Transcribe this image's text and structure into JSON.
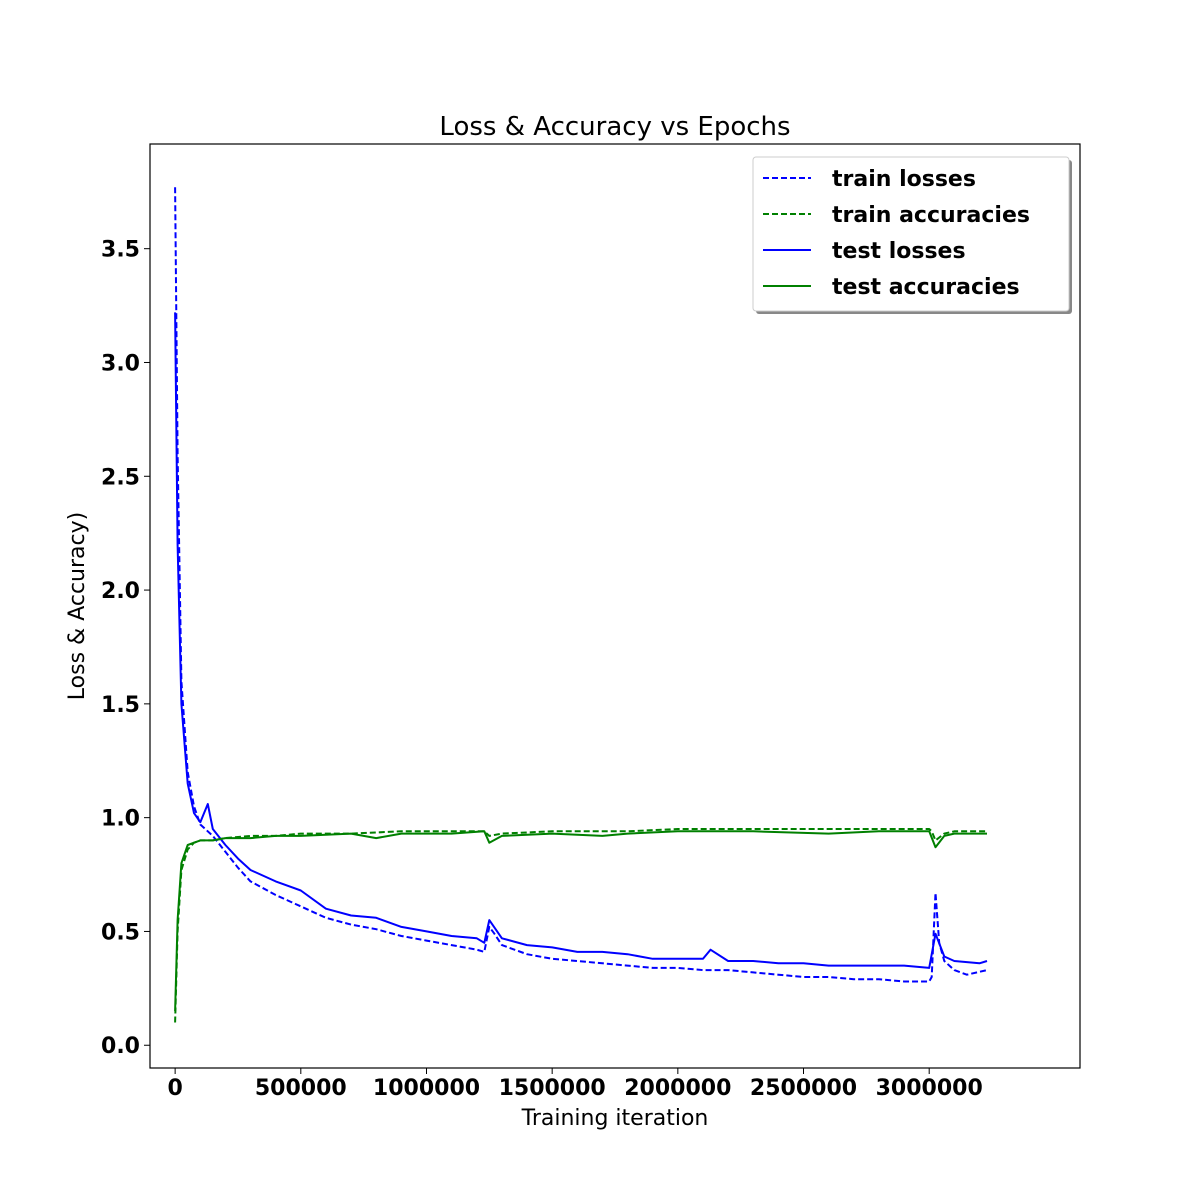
{
  "chart_data": {
    "type": "line",
    "title": "Loss & Accuracy vs Epochs",
    "xlabel": "Training iteration",
    "ylabel": "Loss & Accuracy)",
    "xlim": [
      -100000,
      3600000
    ],
    "ylim": [
      -0.1,
      3.96
    ],
    "xticks": [
      0,
      500000,
      1000000,
      1500000,
      2000000,
      2500000,
      3000000
    ],
    "xtick_labels": [
      "0",
      "500000",
      "1000000",
      "1500000",
      "2000000",
      "2500000",
      "3000000"
    ],
    "yticks": [
      0.0,
      0.5,
      1.0,
      1.5,
      2.0,
      2.5,
      3.0,
      3.5
    ],
    "ytick_labels": [
      "0.0",
      "0.5",
      "1.0",
      "1.5",
      "2.0",
      "2.5",
      "3.0",
      "3.5"
    ],
    "legend_position": "top-right",
    "series": [
      {
        "name": "train losses",
        "color": "#0000ff",
        "style": "dashed",
        "x": [
          0,
          10000,
          25000,
          50000,
          75000,
          100000,
          150000,
          200000,
          250000,
          300000,
          400000,
          500000,
          600000,
          700000,
          800000,
          900000,
          1000000,
          1100000,
          1200000,
          1230000,
          1250000,
          1270000,
          1300000,
          1400000,
          1500000,
          1600000,
          1700000,
          1800000,
          1900000,
          2000000,
          2100000,
          2200000,
          2300000,
          2400000,
          2500000,
          2600000,
          2700000,
          2800000,
          2900000,
          3000000,
          3010000,
          3025000,
          3040000,
          3060000,
          3100000,
          3150000,
          3230000
        ],
        "y": [
          3.77,
          2.6,
          1.6,
          1.2,
          1.05,
          0.97,
          0.92,
          0.85,
          0.78,
          0.72,
          0.66,
          0.61,
          0.56,
          0.53,
          0.51,
          0.48,
          0.46,
          0.44,
          0.42,
          0.41,
          0.52,
          0.49,
          0.44,
          0.4,
          0.38,
          0.37,
          0.36,
          0.35,
          0.34,
          0.34,
          0.33,
          0.33,
          0.32,
          0.31,
          0.3,
          0.3,
          0.29,
          0.29,
          0.28,
          0.28,
          0.3,
          0.67,
          0.45,
          0.37,
          0.33,
          0.31,
          0.33
        ]
      },
      {
        "name": "train accuracies",
        "color": "#008000",
        "style": "dashed",
        "x": [
          0,
          10000,
          25000,
          50000,
          75000,
          100000,
          150000,
          200000,
          300000,
          400000,
          500000,
          700000,
          900000,
          1100000,
          1230000,
          1250000,
          1300000,
          1500000,
          1800000,
          2000000,
          2300000,
          2600000,
          2800000,
          3000000,
          3010000,
          3025000,
          3060000,
          3100000,
          3230000
        ],
        "y": [
          0.1,
          0.5,
          0.77,
          0.86,
          0.89,
          0.9,
          0.9,
          0.91,
          0.92,
          0.92,
          0.93,
          0.93,
          0.94,
          0.94,
          0.94,
          0.92,
          0.93,
          0.94,
          0.94,
          0.95,
          0.95,
          0.95,
          0.95,
          0.95,
          0.94,
          0.9,
          0.93,
          0.94,
          0.94
        ]
      },
      {
        "name": "test losses",
        "color": "#0000ff",
        "style": "solid",
        "x": [
          0,
          10000,
          25000,
          50000,
          75000,
          100000,
          130000,
          150000,
          200000,
          250000,
          300000,
          400000,
          500000,
          600000,
          700000,
          800000,
          900000,
          1000000,
          1100000,
          1200000,
          1230000,
          1250000,
          1300000,
          1400000,
          1500000,
          1600000,
          1700000,
          1800000,
          1900000,
          2000000,
          2100000,
          2130000,
          2200000,
          2300000,
          2400000,
          2500000,
          2600000,
          2700000,
          2800000,
          2900000,
          3000000,
          3025000,
          3060000,
          3100000,
          3200000,
          3230000
        ],
        "y": [
          3.22,
          2.2,
          1.5,
          1.15,
          1.02,
          0.98,
          1.06,
          0.95,
          0.88,
          0.82,
          0.77,
          0.72,
          0.68,
          0.6,
          0.57,
          0.56,
          0.52,
          0.5,
          0.48,
          0.47,
          0.45,
          0.55,
          0.47,
          0.44,
          0.43,
          0.41,
          0.41,
          0.4,
          0.38,
          0.38,
          0.38,
          0.42,
          0.37,
          0.37,
          0.36,
          0.36,
          0.35,
          0.35,
          0.35,
          0.35,
          0.34,
          0.49,
          0.39,
          0.37,
          0.36,
          0.37
        ]
      },
      {
        "name": "test accuracies",
        "color": "#008000",
        "style": "solid",
        "x": [
          0,
          10000,
          25000,
          50000,
          75000,
          100000,
          150000,
          200000,
          300000,
          400000,
          500000,
          700000,
          800000,
          900000,
          1100000,
          1230000,
          1250000,
          1300000,
          1500000,
          1700000,
          1800000,
          2000000,
          2300000,
          2600000,
          2800000,
          3000000,
          3025000,
          3060000,
          3100000,
          3230000
        ],
        "y": [
          0.15,
          0.55,
          0.8,
          0.88,
          0.89,
          0.9,
          0.9,
          0.91,
          0.91,
          0.92,
          0.92,
          0.93,
          0.91,
          0.93,
          0.93,
          0.94,
          0.89,
          0.92,
          0.93,
          0.92,
          0.93,
          0.94,
          0.94,
          0.93,
          0.94,
          0.94,
          0.87,
          0.92,
          0.93,
          0.93
        ]
      }
    ]
  }
}
